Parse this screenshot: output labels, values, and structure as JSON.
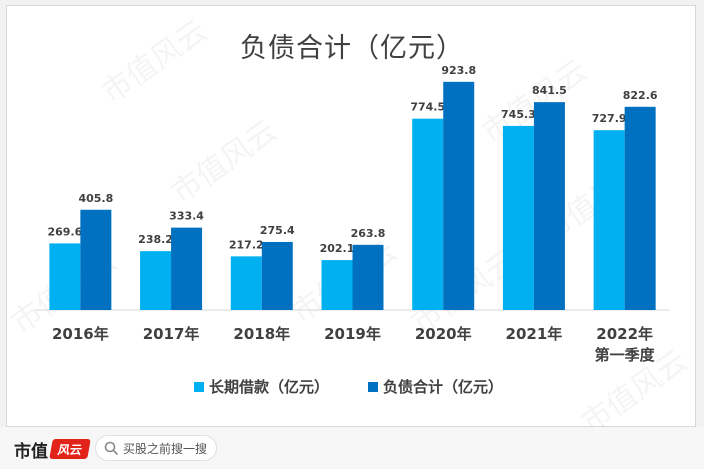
{
  "chart_data": {
    "type": "bar",
    "title": "负债合计（亿元）",
    "categories": [
      "2016年",
      "2017年",
      "2018年",
      "2019年",
      "2020年",
      "2021年",
      "2022年\n第一季度"
    ],
    "series": [
      {
        "name": "长期借款（亿元）",
        "color": "#00b0f0",
        "values": [
          269.6,
          238.2,
          217.2,
          202.1,
          774.5,
          745.3,
          727.9
        ]
      },
      {
        "name": "负债合计（亿元）",
        "color": "#0070c0",
        "values": [
          405.8,
          333.4,
          275.4,
          263.8,
          923.8,
          841.5,
          822.6
        ]
      }
    ],
    "ylim": [
      0,
      1000
    ],
    "grid": false,
    "legend_position": "bottom"
  },
  "watermark": "市值风云",
  "footer": {
    "brand_name": "市值",
    "brand_logo_text": "风云",
    "search_placeholder": "买股之前搜一搜"
  }
}
